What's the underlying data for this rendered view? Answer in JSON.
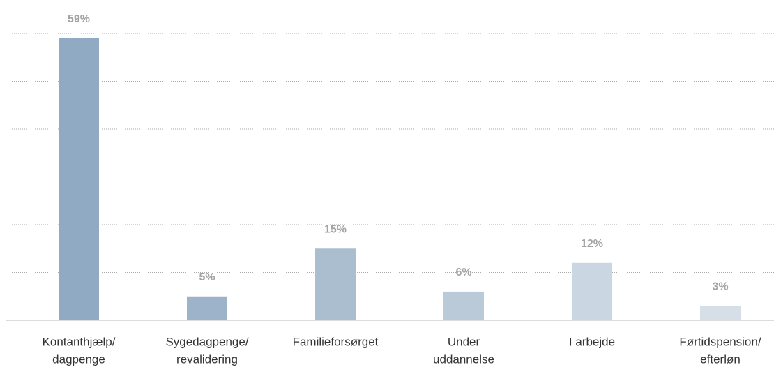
{
  "chart_data": {
    "type": "bar",
    "categories": [
      [
        "Kontanthjælp/",
        "dagpenge"
      ],
      [
        "Sygedagpenge/",
        "revalidering"
      ],
      [
        "Familieforsørget"
      ],
      [
        "Under",
        "uddannelse"
      ],
      [
        "I arbejde"
      ],
      [
        "Førtidspension/",
        "efterløn"
      ]
    ],
    "values": [
      59,
      5,
      15,
      6,
      12,
      3
    ],
    "value_labels": [
      "59%",
      "5%",
      "15%",
      "6%",
      "12%",
      "3%"
    ],
    "colors": [
      "#90aac3",
      "#9db3ca",
      "#abbed0",
      "#bbcad9",
      "#cad6e1",
      "#d6dfe8"
    ],
    "ylim": [
      0,
      60
    ],
    "yticks": [
      0,
      10,
      20,
      30,
      40,
      50,
      60
    ],
    "grid": true
  }
}
